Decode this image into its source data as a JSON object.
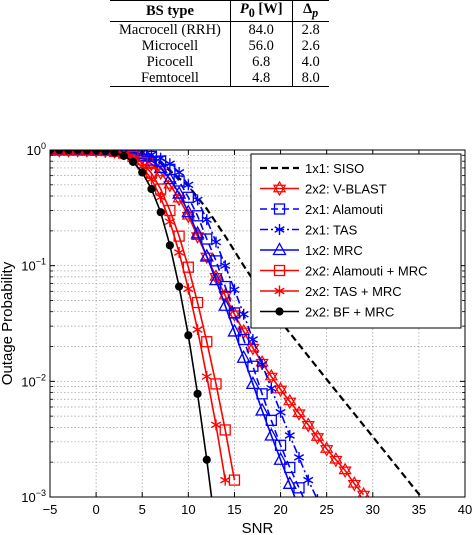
{
  "table": {
    "headers": [
      "BS type",
      "P0 [W]",
      "Δp"
    ],
    "header_parts": {
      "p0_main": "P",
      "p0_sub": "0",
      "p0_unit": " [W]",
      "delta_main": "Δ",
      "delta_sub": "p"
    },
    "rows": [
      [
        "Macrocell (RRH)",
        "84.0",
        "2.8"
      ],
      [
        "Microcell",
        "56.0",
        "2.6"
      ],
      [
        "Picocell",
        "6.8",
        "4.0"
      ],
      [
        "Femtocell",
        "4.8",
        "8.0"
      ]
    ]
  },
  "chart_data": {
    "type": "line",
    "title": "",
    "xlabel": "SNR",
    "ylabel": "Outage Probability",
    "xlim": [
      -5,
      40
    ],
    "ylim": [
      0.001,
      1
    ],
    "yscale": "log",
    "grid": true,
    "legend_position": "top-right",
    "x_ticks": [
      -5,
      0,
      5,
      10,
      15,
      20,
      25,
      30,
      35,
      40
    ],
    "y_ticks": [
      0.001,
      0.01,
      0.1,
      1
    ],
    "y_tick_labels": [
      {
        "base": "10",
        "exp": "-3"
      },
      {
        "base": "10",
        "exp": "-2"
      },
      {
        "base": "10",
        "exp": "-1"
      },
      {
        "base": "10",
        "exp": "0"
      }
    ],
    "series": [
      {
        "name": "1x1: SISO",
        "color": "#000000",
        "dash": "dashed",
        "marker": "none",
        "x": [
          -5,
          0,
          5,
          7,
          10,
          12,
          14,
          16,
          20,
          25,
          30,
          35,
          39
        ],
        "y": [
          1.0,
          0.99,
          0.904,
          0.77,
          0.49,
          0.31,
          0.18,
          0.1,
          0.033,
          0.0104,
          0.00332,
          0.00106,
          0.0005
        ]
      },
      {
        "name": "2x2: V-BLAST",
        "color": "#ff0000",
        "dash": "solid",
        "marker": "star6",
        "x": [
          -5,
          -4,
          -3,
          -2,
          -1,
          0,
          1,
          2,
          3,
          4,
          5,
          6,
          7,
          8,
          9,
          10,
          11,
          12,
          13,
          14,
          15,
          16,
          17,
          18,
          19,
          20,
          21,
          22,
          23,
          24,
          25,
          26,
          27,
          28,
          29
        ],
        "y": [
          1.0,
          1.0,
          1.0,
          0.999,
          0.998,
          0.995,
          0.988,
          0.975,
          0.95,
          0.91,
          0.85,
          0.76,
          0.64,
          0.5,
          0.38,
          0.27,
          0.18,
          0.12,
          0.08,
          0.055,
          0.038,
          0.027,
          0.0195,
          0.0145,
          0.011,
          0.0085,
          0.0067,
          0.0053,
          0.0042,
          0.0033,
          0.0026,
          0.0021,
          0.0017,
          0.0013,
          0.00105
        ]
      },
      {
        "name": "2x1: Alamouti",
        "color": "#0000ff",
        "dash": "dashed",
        "marker": "square",
        "x": [
          -5,
          -4,
          -3,
          -2,
          -1,
          0,
          1,
          2,
          3,
          4,
          5,
          6,
          7,
          8,
          9,
          10,
          11,
          12,
          13,
          14,
          15,
          16,
          17,
          18,
          19,
          20,
          21,
          22,
          23
        ],
        "y": [
          1.0,
          1.0,
          1.0,
          1.0,
          1.0,
          0.998,
          0.995,
          0.99,
          0.98,
          0.96,
          0.93,
          0.88,
          0.8,
          0.68,
          0.54,
          0.39,
          0.27,
          0.17,
          0.11,
          0.066,
          0.039,
          0.023,
          0.0135,
          0.0078,
          0.0046,
          0.0028,
          0.0018,
          0.0012,
          0.0008
        ]
      },
      {
        "name": "2x1: TAS",
        "color": "#0000ff",
        "dash": "dashdot",
        "marker": "asterisk",
        "x": [
          -5,
          -4,
          -3,
          -2,
          -1,
          0,
          1,
          2,
          3,
          4,
          5,
          6,
          7,
          8,
          9,
          10,
          11,
          12,
          13,
          14,
          15,
          16,
          17,
          18,
          19,
          20,
          21,
          22,
          23,
          24
        ],
        "y": [
          1.0,
          1.0,
          1.0,
          1.0,
          1.0,
          0.999,
          0.997,
          0.993,
          0.985,
          0.97,
          0.95,
          0.91,
          0.85,
          0.76,
          0.64,
          0.5,
          0.37,
          0.25,
          0.16,
          0.1,
          0.062,
          0.038,
          0.023,
          0.014,
          0.0087,
          0.0054,
          0.0034,
          0.0022,
          0.0014,
          0.00095
        ]
      },
      {
        "name": "1x2: MRC",
        "color": "#0000ff",
        "dash": "solid",
        "marker": "triangle",
        "x": [
          -5,
          -4,
          -3,
          -2,
          -1,
          0,
          1,
          2,
          3,
          4,
          5,
          6,
          7,
          8,
          9,
          10,
          11,
          12,
          13,
          14,
          15,
          16,
          17,
          18,
          19,
          20,
          21,
          22
        ],
        "y": [
          1.0,
          1.0,
          1.0,
          1.0,
          0.999,
          0.997,
          0.993,
          0.985,
          0.97,
          0.94,
          0.89,
          0.81,
          0.7,
          0.56,
          0.42,
          0.29,
          0.19,
          0.12,
          0.075,
          0.045,
          0.027,
          0.016,
          0.0095,
          0.0056,
          0.0034,
          0.0021,
          0.0013,
          0.0008
        ]
      },
      {
        "name": "2x2: Alamouti + MRC",
        "color": "#ff0000",
        "dash": "solid",
        "marker": "square",
        "x": [
          -5,
          -4,
          -3,
          -2,
          -1,
          0,
          1,
          2,
          3,
          4,
          5,
          6,
          7,
          8,
          9,
          10,
          11,
          12,
          13,
          14,
          15
        ],
        "y": [
          1.0,
          1.0,
          1.0,
          1.0,
          0.999,
          0.997,
          0.99,
          0.975,
          0.94,
          0.88,
          0.78,
          0.63,
          0.46,
          0.3,
          0.18,
          0.097,
          0.048,
          0.022,
          0.0095,
          0.0038,
          0.0014
        ]
      },
      {
        "name": "2x2: TAS + MRC",
        "color": "#ff0000",
        "dash": "solid",
        "marker": "asterisk",
        "x": [
          -5,
          -4,
          -3,
          -2,
          -1,
          0,
          1,
          2,
          3,
          4,
          5,
          6,
          7,
          8,
          9,
          10,
          11,
          12,
          13,
          14
        ],
        "y": [
          1.0,
          1.0,
          1.0,
          1.0,
          0.998,
          0.995,
          0.985,
          0.965,
          0.92,
          0.84,
          0.72,
          0.56,
          0.39,
          0.24,
          0.13,
          0.063,
          0.028,
          0.011,
          0.0042,
          0.0014
        ]
      },
      {
        "name": "2x2: BF + MRC",
        "color": "#000000",
        "dash": "solid",
        "marker": "dot",
        "x": [
          -5,
          -4,
          -3,
          -2,
          -1,
          0,
          1,
          2,
          3,
          4,
          5,
          6,
          7,
          8,
          9,
          10,
          11,
          12,
          13
        ],
        "y": [
          1.0,
          1.0,
          1.0,
          1.0,
          0.998,
          0.993,
          0.98,
          0.95,
          0.89,
          0.79,
          0.64,
          0.46,
          0.29,
          0.15,
          0.066,
          0.025,
          0.0078,
          0.0021,
          0.0005
        ]
      }
    ]
  }
}
